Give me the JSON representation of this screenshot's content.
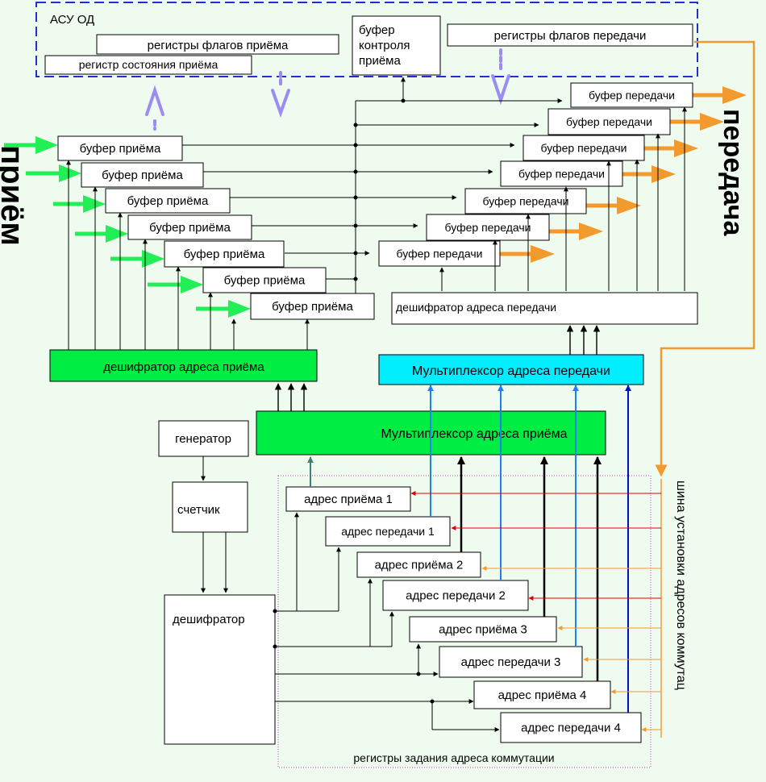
{
  "asu": {
    "title": "АСУ ОД",
    "rx_flags": "регистры флагов приёма",
    "rx_status": "регистр состояния приёма",
    "rx_ctrl_1": "буфер",
    "rx_ctrl_2": "контроля",
    "rx_ctrl_3": "приёма",
    "tx_flags": "регистры флагов передачи"
  },
  "rx_buffer_label": "буфер приёма",
  "tx_buffer_label": "буфер передачи",
  "tx_decoder": "дешифратор адреса передачи",
  "rx_decoder": "дешифратор адреса приёма",
  "tx_mux": "Мультиплексор адреса передачи",
  "rx_mux": "Мультиплексор адреса приёма",
  "generator": "генератор",
  "counter": "счетчик",
  "decoder": "дешифратор",
  "addr_regs": [
    "адрес приёма 1",
    "адрес передачи 1",
    "адрес приёма 2",
    "адрес передачи 2",
    "адрес приёма 3",
    "адрес передачи 3",
    "адрес приёма 4",
    "адрес передачи 4"
  ],
  "regs_caption": "регистры задания адреса коммутации",
  "bus_label": "шина установки адресов коммутац",
  "side_rx": "приём",
  "side_tx": "передача",
  "colors": {
    "background": "#f0fbf0",
    "asu_border": "#1f2fd0",
    "green_block": "#00ee44",
    "cyan_block": "#00eeff",
    "orange": "#f39a2f",
    "green_arrow": "#22ee55",
    "lilac": "#9a8cf2",
    "blue": "#1f7ef0",
    "red": "#e00000",
    "teal": "#3f7f78",
    "dark_blue": "#0010c0"
  }
}
